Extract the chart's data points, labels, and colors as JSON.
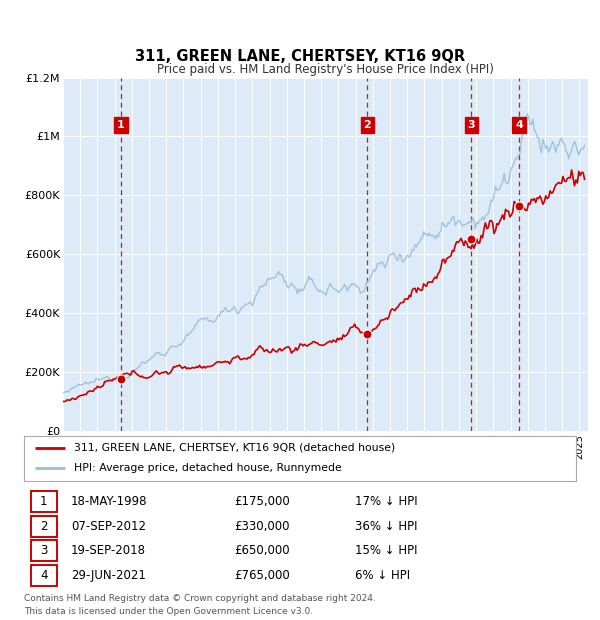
{
  "title": "311, GREEN LANE, CHERTSEY, KT16 9QR",
  "subtitle": "Price paid vs. HM Land Registry's House Price Index (HPI)",
  "ylim": [
    0,
    1200000
  ],
  "yticks": [
    0,
    200000,
    400000,
    600000,
    800000,
    1000000,
    1200000
  ],
  "ytick_labels": [
    "£0",
    "£200K",
    "£400K",
    "£600K",
    "£800K",
    "£1M",
    "£1.2M"
  ],
  "xlim_start": 1995.0,
  "xlim_end": 2025.5,
  "bg_color": "#ddeaf7",
  "sale_color": "#cc0000",
  "hpi_color": "#99bedd",
  "sale_label": "311, GREEN LANE, CHERTSEY, KT16 9QR (detached house)",
  "hpi_label": "HPI: Average price, detached house, Runnymede",
  "transactions": [
    {
      "num": 1,
      "year": 1998.37,
      "price": 175000,
      "date": "18-MAY-1998",
      "pct": "17%",
      "dir": "↓"
    },
    {
      "num": 2,
      "year": 2012.68,
      "price": 330000,
      "date": "07-SEP-2012",
      "pct": "36%",
      "dir": "↓"
    },
    {
      "num": 3,
      "year": 2018.72,
      "price": 650000,
      "date": "19-SEP-2018",
      "pct": "15%",
      "dir": "↓"
    },
    {
      "num": 4,
      "year": 2021.49,
      "price": 765000,
      "date": "29-JUN-2021",
      "pct": "6%",
      "dir": "↓"
    }
  ],
  "footer_line1": "Contains HM Land Registry data © Crown copyright and database right 2024.",
  "footer_line2": "This data is licensed under the Open Government Licence v3.0.",
  "vline_color": "#cc0000",
  "marker_box_color": "#cc0000"
}
